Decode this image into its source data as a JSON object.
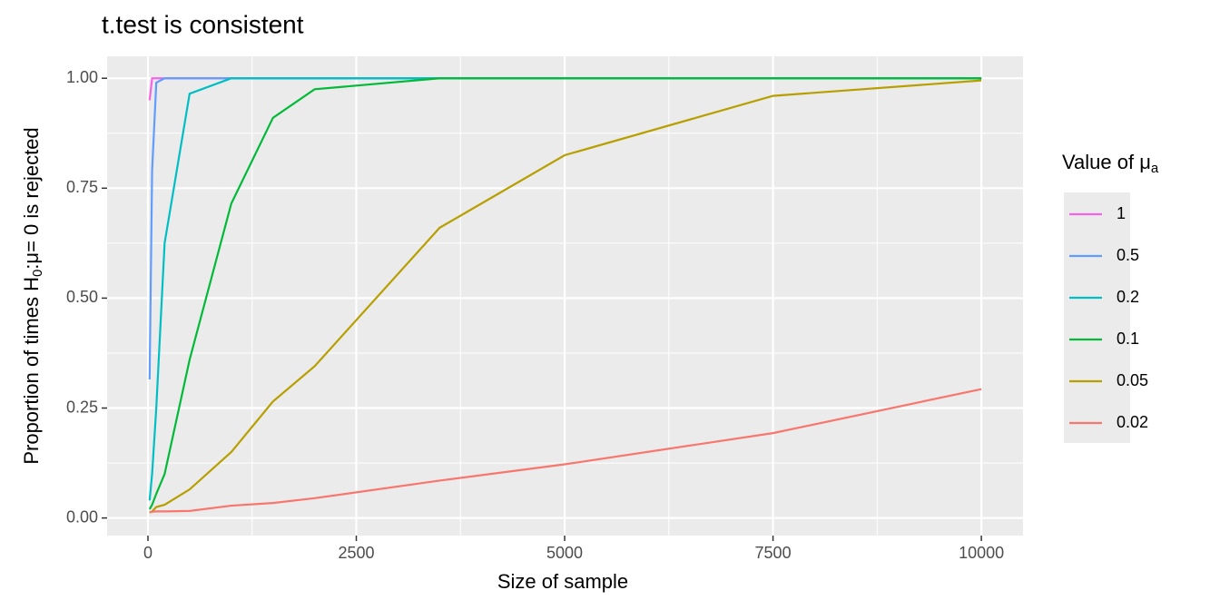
{
  "chart_data": {
    "type": "line",
    "title": "t.test is consistent",
    "x_label": "Size of sample",
    "y_label": {
      "before": "Proportion of times H",
      "sub": "0",
      "after": ":μ= 0 is rejected"
    },
    "legend_title": {
      "before": "Value of μ",
      "sub": "a"
    },
    "legend_position": "right",
    "grid": true,
    "x": [
      20,
      50,
      100,
      200,
      500,
      1000,
      1500,
      2000,
      3500,
      5000,
      7500,
      10000
    ],
    "xlim": [
      -490,
      10500
    ],
    "xticks": [
      0,
      2500,
      5000,
      7500,
      10000
    ],
    "ylim": [
      -0.04,
      1.05
    ],
    "yticks": [
      {
        "value": 0,
        "label": "0.00"
      },
      {
        "value": 0.25,
        "label": "0.25"
      },
      {
        "value": 0.5,
        "label": "0.50"
      },
      {
        "value": 0.75,
        "label": "0.75"
      },
      {
        "value": 1,
        "label": "1.00"
      }
    ],
    "series": [
      {
        "name": "1",
        "color": "#F564E3",
        "values": [
          0.95,
          1,
          1,
          1,
          1,
          1,
          1,
          1,
          1,
          1,
          1,
          1
        ]
      },
      {
        "name": "0.5",
        "color": "#619CFF",
        "values": [
          0.315,
          0.79,
          0.99,
          1,
          1,
          1,
          1,
          1,
          1,
          1,
          1,
          1
        ]
      },
      {
        "name": "0.2",
        "color": "#00BFC4",
        "values": [
          0.04,
          0.1,
          0.25,
          0.625,
          0.965,
          1,
          1,
          1,
          1,
          1,
          1,
          1
        ]
      },
      {
        "name": "0.1",
        "color": "#00BA38",
        "values": [
          0.02,
          0.03,
          0.055,
          0.1,
          0.36,
          0.715,
          0.91,
          0.975,
          1,
          1,
          1,
          1
        ]
      },
      {
        "name": "0.05",
        "color": "#B79F00",
        "values": [
          0.012,
          0.015,
          0.025,
          0.03,
          0.065,
          0.15,
          0.265,
          0.345,
          0.66,
          0.825,
          0.96,
          0.995
        ]
      },
      {
        "name": "0.02",
        "color": "#F8766D",
        "values": [
          0.013,
          0.014,
          0.015,
          0.015,
          0.016,
          0.028,
          0.034,
          0.045,
          0.085,
          0.122,
          0.193,
          0.293
        ]
      }
    ]
  }
}
